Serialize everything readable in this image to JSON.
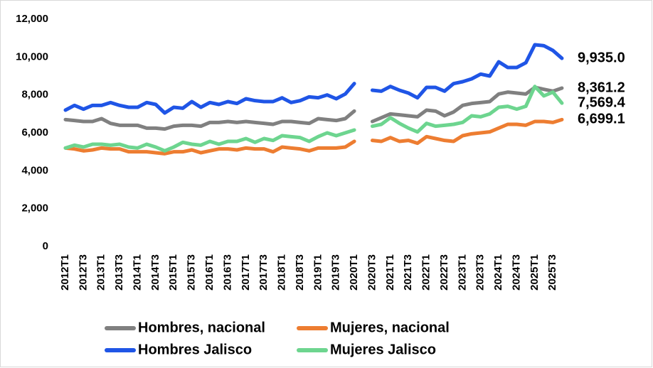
{
  "chart_data": {
    "type": "line",
    "categories": [
      "2012T1",
      null,
      "2012T3",
      null,
      "2013T1",
      null,
      "2013T3",
      null,
      "2014T1",
      null,
      "2014T3",
      null,
      "2015T1",
      null,
      "2015T3",
      null,
      "2016T1",
      null,
      "2016T3",
      null,
      "2017T1",
      null,
      "2017T3",
      null,
      "2018T1",
      null,
      "2018T3",
      null,
      "2019T1",
      null,
      "2019T3",
      null,
      "2020T1",
      null,
      "2020T3",
      null,
      "2021T1",
      null,
      "2021T3",
      null,
      "2022T1",
      null,
      "2022T3",
      null,
      "2023T1",
      null,
      "2023T3",
      null,
      "2024T1",
      null,
      "2024T3",
      null,
      "2025T1",
      null,
      "2025T3",
      null
    ],
    "series": [
      {
        "name": "Hombres, nacional",
        "color": "#808080",
        "values": [
          6700,
          6650,
          6600,
          6600,
          6750,
          6500,
          6400,
          6400,
          6400,
          6250,
          6250,
          6200,
          6350,
          6400,
          6400,
          6350,
          6550,
          6550,
          6600,
          6550,
          6600,
          6550,
          6500,
          6450,
          6600,
          6600,
          6550,
          6500,
          6750,
          6700,
          6650,
          6750,
          7150,
          null,
          6600,
          6800,
          7000,
          6950,
          6900,
          6850,
          7200,
          7150,
          6900,
          7100,
          7450,
          7550,
          7600,
          7650,
          8050,
          8150,
          8100,
          8050,
          8400,
          8300,
          8200,
          8361.2
        ],
        "value_labels": [
          null,
          null,
          null,
          null,
          null,
          null,
          null,
          null,
          null,
          null,
          null,
          null,
          null,
          null,
          null,
          null,
          null,
          null,
          null,
          null,
          null,
          null,
          null,
          null,
          null,
          null,
          null,
          null,
          null,
          null,
          null,
          null,
          null,
          null,
          null,
          null,
          null,
          null,
          null,
          null,
          null,
          null,
          null,
          null,
          null,
          null,
          null,
          null,
          null,
          null,
          null,
          null,
          null,
          null,
          null,
          "8,361.2"
        ]
      },
      {
        "name": "Mujeres, nacional",
        "color": "#ed7d31",
        "values": [
          5200,
          5150,
          5050,
          5100,
          5200,
          5150,
          5150,
          5000,
          5000,
          5000,
          4950,
          4900,
          5000,
          5000,
          5100,
          4950,
          5050,
          5150,
          5150,
          5100,
          5200,
          5150,
          5150,
          5000,
          5250,
          5200,
          5150,
          5050,
          5200,
          5200,
          5200,
          5250,
          5550,
          null,
          5600,
          5550,
          5750,
          5550,
          5600,
          5450,
          5800,
          5700,
          5600,
          5550,
          5850,
          5950,
          6000,
          6050,
          6250,
          6450,
          6450,
          6400,
          6600,
          6600,
          6550,
          6699.1
        ],
        "value_labels": [
          null,
          null,
          null,
          null,
          null,
          null,
          null,
          null,
          null,
          null,
          null,
          null,
          null,
          null,
          null,
          null,
          null,
          null,
          null,
          null,
          null,
          null,
          null,
          null,
          null,
          null,
          null,
          null,
          null,
          null,
          null,
          null,
          null,
          null,
          null,
          null,
          null,
          null,
          null,
          null,
          null,
          null,
          null,
          null,
          null,
          null,
          null,
          null,
          null,
          null,
          null,
          null,
          null,
          null,
          null,
          "6,699.1"
        ]
      },
      {
        "name": "Hombres Jalisco",
        "color": "#1f55e6",
        "values": [
          7200,
          7450,
          7250,
          7450,
          7450,
          7600,
          7450,
          7350,
          7350,
          7600,
          7500,
          7050,
          7350,
          7300,
          7650,
          7350,
          7600,
          7500,
          7650,
          7550,
          7800,
          7700,
          7650,
          7650,
          7850,
          7600,
          7700,
          7900,
          7850,
          8000,
          7800,
          8050,
          8600,
          null,
          8250,
          8200,
          8450,
          8250,
          8100,
          7850,
          8400,
          8400,
          8200,
          8600,
          8700,
          8850,
          9100,
          9000,
          9750,
          9450,
          9450,
          9700,
          10650,
          10600,
          10350,
          9935.0
        ],
        "value_labels": [
          null,
          null,
          null,
          null,
          null,
          null,
          null,
          null,
          null,
          null,
          null,
          null,
          null,
          null,
          null,
          null,
          null,
          null,
          null,
          null,
          null,
          null,
          null,
          null,
          null,
          null,
          null,
          null,
          null,
          null,
          null,
          null,
          null,
          null,
          null,
          null,
          null,
          null,
          null,
          null,
          null,
          null,
          null,
          null,
          null,
          null,
          null,
          null,
          null,
          null,
          null,
          null,
          null,
          null,
          null,
          "9,935.0"
        ]
      },
      {
        "name": "Mujeres Jalisco",
        "color": "#6dd58f",
        "values": [
          5200,
          5350,
          5250,
          5400,
          5400,
          5350,
          5400,
          5250,
          5200,
          5400,
          5250,
          5050,
          5250,
          5500,
          5400,
          5350,
          5550,
          5400,
          5550,
          5550,
          5700,
          5500,
          5700,
          5600,
          5850,
          5800,
          5750,
          5550,
          5800,
          6000,
          5850,
          6000,
          6150,
          null,
          6350,
          6450,
          6800,
          6500,
          6250,
          6050,
          6500,
          6350,
          6400,
          6450,
          6550,
          6900,
          6850,
          7000,
          7350,
          7400,
          7250,
          7400,
          8450,
          7950,
          8150,
          7569.4
        ],
        "value_labels": [
          null,
          null,
          null,
          null,
          null,
          null,
          null,
          null,
          null,
          null,
          null,
          null,
          null,
          null,
          null,
          null,
          null,
          null,
          null,
          null,
          null,
          null,
          null,
          null,
          null,
          null,
          null,
          null,
          null,
          null,
          null,
          null,
          null,
          null,
          null,
          null,
          null,
          null,
          null,
          null,
          null,
          null,
          null,
          null,
          null,
          null,
          null,
          null,
          null,
          null,
          null,
          null,
          null,
          null,
          null,
          "7,569.4"
        ]
      }
    ],
    "ylim": [
      0,
      12000
    ],
    "yticks": [
      0,
      {
        "value": 2000,
        "label": "2,000"
      },
      {
        "value": 4000,
        "label": "4,000"
      },
      {
        "value": 6000,
        "label": "6,000"
      },
      {
        "value": 8000,
        "label": "8,000"
      },
      {
        "value": 10000,
        "label": "10,000"
      },
      {
        "value": 12000,
        "label": "12,000"
      }
    ],
    "grid": false
  }
}
